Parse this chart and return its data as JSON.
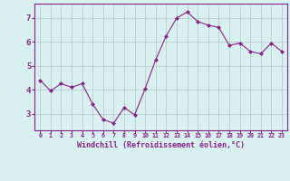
{
  "x": [
    0,
    1,
    2,
    3,
    4,
    5,
    6,
    7,
    8,
    9,
    10,
    11,
    12,
    13,
    14,
    15,
    16,
    17,
    18,
    19,
    20,
    21,
    22,
    23
  ],
  "y": [
    4.4,
    3.95,
    4.25,
    4.1,
    4.25,
    3.4,
    2.75,
    2.6,
    3.25,
    2.95,
    4.05,
    5.25,
    6.25,
    7.0,
    7.25,
    6.85,
    6.7,
    6.6,
    5.85,
    5.95,
    5.6,
    5.5,
    5.95,
    5.6
  ],
  "line_color": "#882288",
  "marker": "D",
  "marker_size": 2.0,
  "bg_color": "#d8f0f0",
  "grid_color": "#b0c8c8",
  "xlabel": "Windchill (Refroidissement éolien,°C)",
  "xlabel_color": "#882288",
  "tick_color": "#882288",
  "ylim": [
    2.3,
    7.6
  ],
  "xlim": [
    -0.5,
    23.5
  ],
  "yticks": [
    3,
    4,
    5,
    6,
    7
  ],
  "xticks": [
    0,
    1,
    2,
    3,
    4,
    5,
    6,
    7,
    8,
    9,
    10,
    11,
    12,
    13,
    14,
    15,
    16,
    17,
    18,
    19,
    20,
    21,
    22,
    23
  ],
  "xtick_labels": [
    "0",
    "1",
    "2",
    "3",
    "4",
    "5",
    "6",
    "7",
    "8",
    "9",
    "10",
    "11",
    "12",
    "13",
    "14",
    "15",
    "16",
    "17",
    "18",
    "19",
    "20",
    "21",
    "22",
    "23"
  ],
  "spine_color": "#882288"
}
